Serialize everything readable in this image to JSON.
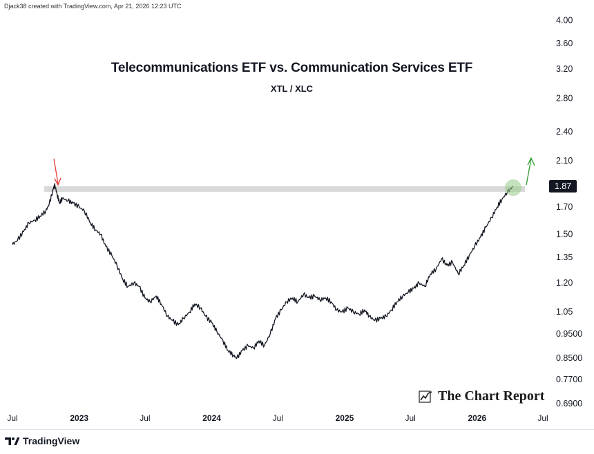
{
  "header": {
    "credit": "Djack38 created with TradingView.com, Apr 21, 2026 12:23 UTC"
  },
  "chart_data": {
    "type": "line",
    "title": "Telecommunications ETF vs. Communication Services ETF",
    "subtitle": "XTL / XLC",
    "y_scale": "log",
    "ylim": [
      0.67,
      4.2
    ],
    "y_ticks": [
      "4.00",
      "3.60",
      "3.20",
      "2.80",
      "2.40",
      "2.10",
      "1.70",
      "1.50",
      "1.35",
      "1.20",
      "1.05",
      "0.9500",
      "0.8500",
      "0.7700",
      "0.6900"
    ],
    "x_ticks": [
      {
        "label": "Jul",
        "year": false
      },
      {
        "label": "2023",
        "year": true
      },
      {
        "label": "Jul",
        "year": false
      },
      {
        "label": "2024",
        "year": true
      },
      {
        "label": "Jul",
        "year": false
      },
      {
        "label": "2025",
        "year": true
      },
      {
        "label": "Jul",
        "year": false
      },
      {
        "label": "2026",
        "year": true
      },
      {
        "label": "Jul",
        "year": false
      }
    ],
    "last_value": "1.87",
    "resistance_level": 1.87,
    "series": [
      {
        "color": "#131722",
        "points": [
          [
            "2022-07-01",
            1.43
          ],
          [
            "2022-07-15",
            1.46
          ],
          [
            "2022-08-01",
            1.52
          ],
          [
            "2022-08-15",
            1.58
          ],
          [
            "2022-09-01",
            1.6
          ],
          [
            "2022-09-15",
            1.63
          ],
          [
            "2022-10-01",
            1.67
          ],
          [
            "2022-10-10",
            1.72
          ],
          [
            "2022-10-22",
            1.85
          ],
          [
            "2022-10-26",
            1.88
          ],
          [
            "2022-11-01",
            1.8
          ],
          [
            "2022-11-08",
            1.73
          ],
          [
            "2022-11-15",
            1.77
          ],
          [
            "2022-12-01",
            1.75
          ],
          [
            "2022-12-15",
            1.73
          ],
          [
            "2023-01-01",
            1.7
          ],
          [
            "2023-01-15",
            1.67
          ],
          [
            "2023-02-01",
            1.58
          ],
          [
            "2023-02-15",
            1.53
          ],
          [
            "2023-03-01",
            1.5
          ],
          [
            "2023-03-15",
            1.42
          ],
          [
            "2023-04-01",
            1.36
          ],
          [
            "2023-04-15",
            1.3
          ],
          [
            "2023-05-01",
            1.22
          ],
          [
            "2023-05-15",
            1.18
          ],
          [
            "2023-06-01",
            1.2
          ],
          [
            "2023-06-15",
            1.18
          ],
          [
            "2023-07-01",
            1.12
          ],
          [
            "2023-07-15",
            1.1
          ],
          [
            "2023-08-01",
            1.13
          ],
          [
            "2023-08-15",
            1.09
          ],
          [
            "2023-09-01",
            1.03
          ],
          [
            "2023-09-15",
            1.01
          ],
          [
            "2023-10-01",
            0.99
          ],
          [
            "2023-10-15",
            1.02
          ],
          [
            "2023-11-01",
            1.05
          ],
          [
            "2023-11-15",
            1.09
          ],
          [
            "2023-12-01",
            1.07
          ],
          [
            "2023-12-15",
            1.03
          ],
          [
            "2024-01-01",
            1.0
          ],
          [
            "2024-01-15",
            0.96
          ],
          [
            "2024-02-01",
            0.92
          ],
          [
            "2024-02-15",
            0.88
          ],
          [
            "2024-03-01",
            0.86
          ],
          [
            "2024-03-10",
            0.85
          ],
          [
            "2024-03-25",
            0.88
          ],
          [
            "2024-04-10",
            0.9
          ],
          [
            "2024-04-25",
            0.89
          ],
          [
            "2024-05-10",
            0.92
          ],
          [
            "2024-05-25",
            0.9
          ],
          [
            "2024-06-10",
            0.95
          ],
          [
            "2024-06-25",
            1.02
          ],
          [
            "2024-07-10",
            1.06
          ],
          [
            "2024-07-25",
            1.1
          ],
          [
            "2024-08-10",
            1.12
          ],
          [
            "2024-08-25",
            1.1
          ],
          [
            "2024-09-10",
            1.14
          ],
          [
            "2024-09-25",
            1.12
          ],
          [
            "2024-10-10",
            1.13
          ],
          [
            "2024-10-25",
            1.11
          ],
          [
            "2024-11-10",
            1.12
          ],
          [
            "2024-11-25",
            1.1
          ],
          [
            "2024-12-10",
            1.06
          ],
          [
            "2024-12-25",
            1.05
          ],
          [
            "2025-01-10",
            1.07
          ],
          [
            "2025-01-25",
            1.05
          ],
          [
            "2025-02-10",
            1.04
          ],
          [
            "2025-02-25",
            1.06
          ],
          [
            "2025-03-10",
            1.03
          ],
          [
            "2025-03-25",
            1.01
          ],
          [
            "2025-04-10",
            1.02
          ],
          [
            "2025-04-25",
            1.03
          ],
          [
            "2025-05-10",
            1.06
          ],
          [
            "2025-05-25",
            1.1
          ],
          [
            "2025-06-10",
            1.13
          ],
          [
            "2025-06-25",
            1.15
          ],
          [
            "2025-07-10",
            1.17
          ],
          [
            "2025-07-25",
            1.2
          ],
          [
            "2025-08-10",
            1.18
          ],
          [
            "2025-08-25",
            1.25
          ],
          [
            "2025-09-10",
            1.28
          ],
          [
            "2025-09-25",
            1.34
          ],
          [
            "2025-10-10",
            1.3
          ],
          [
            "2025-10-25",
            1.32
          ],
          [
            "2025-11-10",
            1.25
          ],
          [
            "2025-11-25",
            1.3
          ],
          [
            "2025-12-10",
            1.36
          ],
          [
            "2025-12-25",
            1.42
          ],
          [
            "2026-01-10",
            1.48
          ],
          [
            "2026-01-25",
            1.55
          ],
          [
            "2026-02-10",
            1.62
          ],
          [
            "2026-02-25",
            1.7
          ],
          [
            "2026-03-10",
            1.76
          ],
          [
            "2026-03-25",
            1.82
          ],
          [
            "2026-04-10",
            1.87
          ]
        ]
      }
    ]
  },
  "watermark": {
    "text": "The Chart Report"
  },
  "footer": {
    "brand": "TradingView"
  }
}
